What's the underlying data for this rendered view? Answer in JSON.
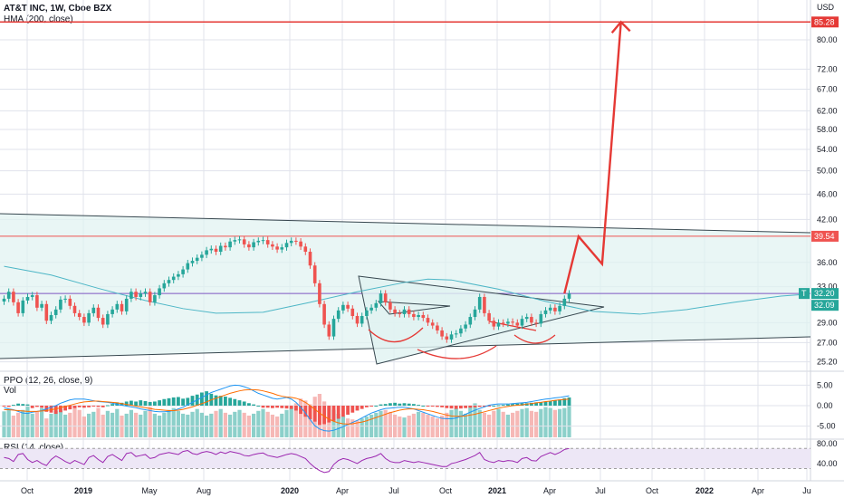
{
  "header": {
    "title": "AT&T INC, 1W, Cboe BZX",
    "hma_label": "HMA (200, close)",
    "ppo_label": "PPO (12, 26, close, 9)",
    "vol_label": "Vol",
    "rsi_label": "RSI (14, close)"
  },
  "colors": {
    "up": "#26a69a",
    "down": "#ef5350",
    "arrow": "#e53935",
    "hma": "#4db6c6",
    "channel_fill": "#e0f2f1",
    "rsi_band": "#ede7f6",
    "rsi_line": "#9c27b0",
    "grid": "#e0e3eb",
    "price_tag": "#26a69a",
    "resistance_tag": "#ef5350"
  },
  "chart_data": [
    {
      "type": "candlestick",
      "name": "price",
      "y_axis_unit": "USD",
      "y_scale": "log",
      "y_ticks": [
        25.2,
        27.0,
        29.0,
        33.0,
        36.0,
        42.0,
        46.0,
        50.0,
        54.0,
        58.0,
        62.0,
        67.0,
        72.0,
        80.0
      ],
      "x_ticks": [
        "Oct",
        "2019",
        "May",
        "Aug",
        "2020",
        "Apr",
        "Jul",
        "Oct",
        "2021",
        "Apr",
        "Jul",
        "Oct",
        "2022",
        "Apr",
        "Ju"
      ],
      "price_labels": [
        {
          "value": "85.28",
          "kind": "target"
        },
        {
          "value": "39.54",
          "kind": "resistance"
        },
        {
          "value": "32.20",
          "kind": "last",
          "marker": "T"
        },
        {
          "value": "32.09",
          "kind": "hma"
        }
      ],
      "series": [
        {
          "kind": "candles",
          "closes": [
            31.6,
            32.4,
            31.2,
            30.0,
            31.4,
            31.8,
            32.0,
            30.6,
            31.0,
            29.2,
            29.8,
            30.4,
            31.5,
            31.6,
            30.8,
            30.0,
            29.6,
            29.0,
            30.0,
            30.6,
            29.5,
            28.8,
            29.9,
            30.4,
            31.0,
            30.2,
            31.6,
            32.4,
            31.8,
            32.2,
            32.4,
            31.2,
            32.0,
            32.8,
            33.4,
            33.8,
            34.2,
            34.5,
            35.1,
            35.9,
            36.2,
            36.6,
            37.0,
            37.6,
            37.8,
            37.4,
            38.2,
            38.0,
            38.8,
            39.0,
            39.1,
            38.4,
            38.0,
            38.7,
            38.9,
            39.0,
            38.4,
            38.1,
            37.7,
            38.0,
            38.6,
            38.9,
            38.8,
            38.1,
            37.4,
            35.6,
            33.4,
            31.0,
            28.8,
            27.6,
            29.4,
            30.3,
            30.9,
            30.5,
            29.7,
            28.9,
            29.7,
            30.3,
            30.6,
            31.1,
            32.2,
            31.2,
            30.4,
            30.0,
            29.9,
            30.4,
            29.9,
            29.6,
            29.8,
            29.5,
            29.0,
            28.7,
            28.2,
            27.6,
            27.3,
            27.8,
            27.9,
            28.4,
            28.8,
            29.6,
            30.4,
            31.8,
            30.0,
            29.2,
            28.6,
            29.0,
            28.9,
            29.1,
            29.0,
            28.7,
            29.4,
            29.6,
            29.0,
            28.9,
            29.9,
            30.3,
            30.6,
            30.2,
            30.8,
            31.6,
            32.2
          ]
        },
        {
          "kind": "hma",
          "points": [
            [
              0,
              35.5
            ],
            [
              10,
              34.4
            ],
            [
              20,
              32.8
            ],
            [
              30,
              31.4
            ],
            [
              38,
              30.5
            ],
            [
              45,
              30.0
            ],
            [
              55,
              30.1
            ],
            [
              65,
              31.2
            ],
            [
              75,
              32.4
            ],
            [
              85,
              33.5
            ],
            [
              90,
              33.9
            ],
            [
              95,
              33.8
            ],
            [
              105,
              32.7
            ],
            [
              115,
              31.3
            ],
            [
              125,
              30.2
            ],
            [
              135,
              29.9
            ],
            [
              145,
              30.4
            ],
            [
              155,
              31.2
            ],
            [
              165,
              31.9
            ],
            [
              170,
              32.1
            ]
          ]
        },
        {
          "kind": "target_path",
          "points": [
            [
              119,
              32.2
            ],
            [
              122,
              39.5
            ],
            [
              127,
              35.8
            ],
            [
              131,
              85.28
            ]
          ]
        }
      ]
    },
    {
      "type": "bar",
      "name": "volume",
      "values": [
        55,
        60,
        46,
        52,
        58,
        65,
        50,
        54,
        62,
        40,
        50,
        56,
        60,
        48,
        52,
        66,
        58,
        44,
        50,
        54,
        62,
        48,
        56,
        52,
        60,
        46,
        50,
        58,
        52,
        48,
        56,
        64,
        50,
        46,
        52,
        58,
        62,
        56,
        50,
        48,
        54,
        60,
        52,
        46,
        50,
        56,
        60,
        52,
        48,
        54,
        58,
        52,
        46,
        50,
        56,
        60,
        54,
        48,
        44,
        50,
        58,
        64,
        72,
        82,
        78,
        70,
        86,
        92,
        76,
        66,
        58,
        50,
        44,
        40,
        38,
        36,
        40,
        44,
        48,
        52,
        56,
        58,
        54,
        48,
        44,
        42,
        46,
        50,
        54,
        52,
        48,
        44,
        40,
        46,
        52,
        58,
        62,
        56,
        50,
        66,
        72,
        58,
        52,
        48,
        56,
        60,
        54,
        48,
        52,
        56,
        60,
        62,
        56,
        54,
        60,
        64,
        62,
        58,
        60,
        62,
        66
      ]
    },
    {
      "type": "line",
      "name": "PPO",
      "y_ticks": [
        5.0,
        0.0,
        -5.0
      ],
      "series": [
        {
          "name": "histogram",
          "values": [
            -0.2,
            -0.3,
            0.2,
            0.5,
            0.4,
            0.3,
            -0.6,
            -0.3,
            -0.5,
            -1.5,
            -1.7,
            -2.0,
            -1.6,
            -1.2,
            -0.9,
            -0.6,
            -0.4,
            -0.5,
            -0.4,
            -0.2,
            -0.3,
            -0.4,
            0.1,
            0.4,
            0.8,
            0.7,
            1.0,
            1.2,
            1.0,
            1.3,
            1.1,
            0.9,
            1.0,
            1.3,
            1.6,
            1.8,
            2.0,
            2.1,
            1.7,
            1.9,
            2.4,
            2.7,
            3.2,
            3.5,
            2.9,
            2.5,
            2.4,
            2.2,
            1.9,
            1.6,
            1.3,
            1.0,
            0.6,
            0.3,
            0.0,
            -0.5,
            -0.5,
            -0.6,
            -0.5,
            -0.6,
            -0.7,
            -0.8,
            -1.2,
            -2.0,
            -2.7,
            -3.3,
            -3.9,
            -4.7,
            -4.5,
            -4.1,
            -3.7,
            -3.2,
            -2.7,
            -2.2,
            -1.7,
            -1.2,
            -0.8,
            -0.4,
            -0.2,
            0.0,
            0.3,
            0.4,
            0.6,
            0.7,
            0.5,
            0.6,
            0.5,
            0.4,
            0.2,
            0.0,
            -0.1,
            -0.2,
            -0.3,
            -0.4,
            -0.6,
            -0.7,
            -0.8,
            -0.7,
            -0.6,
            -0.5,
            -0.4,
            -0.3,
            -0.2,
            -0.1,
            0.0,
            0.1,
            0.2,
            0.3,
            0.4,
            0.5,
            0.6,
            0.6,
            0.7,
            0.8,
            0.9,
            1.0,
            1.1,
            1.3,
            1.5,
            1.8,
            2.0
          ]
        },
        {
          "name": "ppo",
          "values": [
            -0.5,
            -0.8,
            -1.0,
            -1.4,
            -1.8,
            -1.9,
            -1.6,
            -1.4,
            -1.2,
            -0.8,
            -0.4,
            0.0,
            0.6,
            1.0,
            1.4,
            1.6,
            1.6,
            1.6,
            1.4,
            1.2,
            1.0,
            0.9,
            0.8,
            0.6,
            0.3,
            0.1,
            -0.1,
            -0.3,
            -0.5,
            -0.8,
            -1.0,
            -1.2,
            -1.4,
            -1.5,
            -1.5,
            -1.4,
            -1.2,
            -0.8,
            -0.4,
            0.2,
            0.8,
            1.4,
            2.0,
            2.6,
            3.2,
            3.6,
            4.0,
            4.4,
            4.8,
            5.0,
            4.9,
            4.6,
            4.2,
            3.6,
            3.0,
            2.6,
            2.2,
            1.8,
            1.6,
            1.8,
            2.0,
            1.6,
            0.8,
            -0.4,
            -1.8,
            -3.4,
            -4.9,
            -5.7,
            -6.1,
            -6.2,
            -6.0,
            -5.6,
            -5.1,
            -4.6,
            -4.1,
            -3.6,
            -3.0,
            -2.4,
            -1.8,
            -1.4,
            -1.0,
            -0.7,
            -0.6,
            -0.5,
            -0.4,
            -0.4,
            -0.6,
            -0.8,
            -1.2,
            -1.6,
            -2.0,
            -2.4,
            -2.8,
            -3.1,
            -3.2,
            -3.2,
            -3.0,
            -2.6,
            -2.1,
            -1.6,
            -1.1,
            -0.7,
            -0.3,
            0.1,
            0.3,
            0.4,
            0.4,
            0.4,
            0.5,
            0.6,
            0.7,
            0.8,
            1.0,
            1.2,
            1.4,
            1.6,
            1.7,
            1.9,
            2.0,
            2.2,
            2.4
          ]
        },
        {
          "name": "signal",
          "values": [
            -1.0,
            -1.0,
            -1.1,
            -1.2,
            -1.3,
            -1.4,
            -1.4,
            -1.4,
            -1.3,
            -1.2,
            -1.0,
            -0.8,
            -0.5,
            -0.2,
            0.1,
            0.4,
            0.7,
            0.9,
            1.0,
            1.1,
            1.1,
            1.0,
            0.9,
            0.8,
            0.7,
            0.5,
            0.3,
            0.1,
            -0.1,
            -0.3,
            -0.5,
            -0.7,
            -0.9,
            -1.0,
            -1.1,
            -1.2,
            -1.2,
            -1.1,
            -0.9,
            -0.6,
            -0.3,
            0.1,
            0.5,
            0.9,
            1.4,
            1.8,
            2.2,
            2.6,
            3.0,
            3.3,
            3.6,
            3.8,
            3.9,
            3.9,
            3.8,
            3.6,
            3.3,
            3.0,
            2.6,
            2.3,
            2.1,
            2.0,
            1.8,
            1.4,
            0.8,
            0.0,
            -0.9,
            -1.8,
            -2.6,
            -3.3,
            -3.8,
            -4.2,
            -4.4,
            -4.5,
            -4.4,
            -4.2,
            -4.0,
            -3.7,
            -3.3,
            -2.9,
            -2.5,
            -2.1,
            -1.7,
            -1.4,
            -1.1,
            -0.9,
            -0.8,
            -0.8,
            -0.9,
            -1.0,
            -1.2,
            -1.4,
            -1.7,
            -2.0,
            -2.3,
            -2.5,
            -2.6,
            -2.6,
            -2.5,
            -2.3,
            -2.1,
            -1.8,
            -1.5,
            -1.2,
            -0.9,
            -0.6,
            -0.4,
            -0.2,
            0.0,
            0.1,
            0.2,
            0.4,
            0.5,
            0.7,
            0.8,
            1.0,
            1.1,
            1.3,
            1.4,
            1.5,
            1.6
          ]
        }
      ]
    },
    {
      "type": "line",
      "name": "RSI",
      "y_ticks": [
        80.0,
        40.0
      ],
      "series": [
        {
          "name": "rsi",
          "values": [
            52,
            50,
            44,
            58,
            60,
            48,
            42,
            46,
            40,
            36,
            48,
            55,
            50,
            44,
            40,
            46,
            42,
            38,
            52,
            56,
            48,
            42,
            54,
            58,
            52,
            46,
            60,
            62,
            54,
            56,
            58,
            50,
            52,
            58,
            60,
            62,
            60,
            58,
            64,
            66,
            60,
            58,
            62,
            64,
            62,
            58,
            63,
            60,
            64,
            62,
            60,
            56,
            55,
            58,
            60,
            61,
            56,
            54,
            52,
            55,
            58,
            60,
            58,
            54,
            50,
            40,
            32,
            26,
            22,
            24,
            38,
            46,
            50,
            48,
            44,
            40,
            46,
            50,
            52,
            55,
            60,
            50,
            44,
            42,
            42,
            46,
            44,
            42,
            44,
            42,
            40,
            38,
            36,
            34,
            34,
            40,
            42,
            45,
            48,
            52,
            56,
            62,
            48,
            44,
            42,
            46,
            44,
            46,
            45,
            42,
            50,
            52,
            46,
            45,
            54,
            58,
            62,
            58,
            62,
            68,
            70
          ]
        }
      ]
    }
  ]
}
